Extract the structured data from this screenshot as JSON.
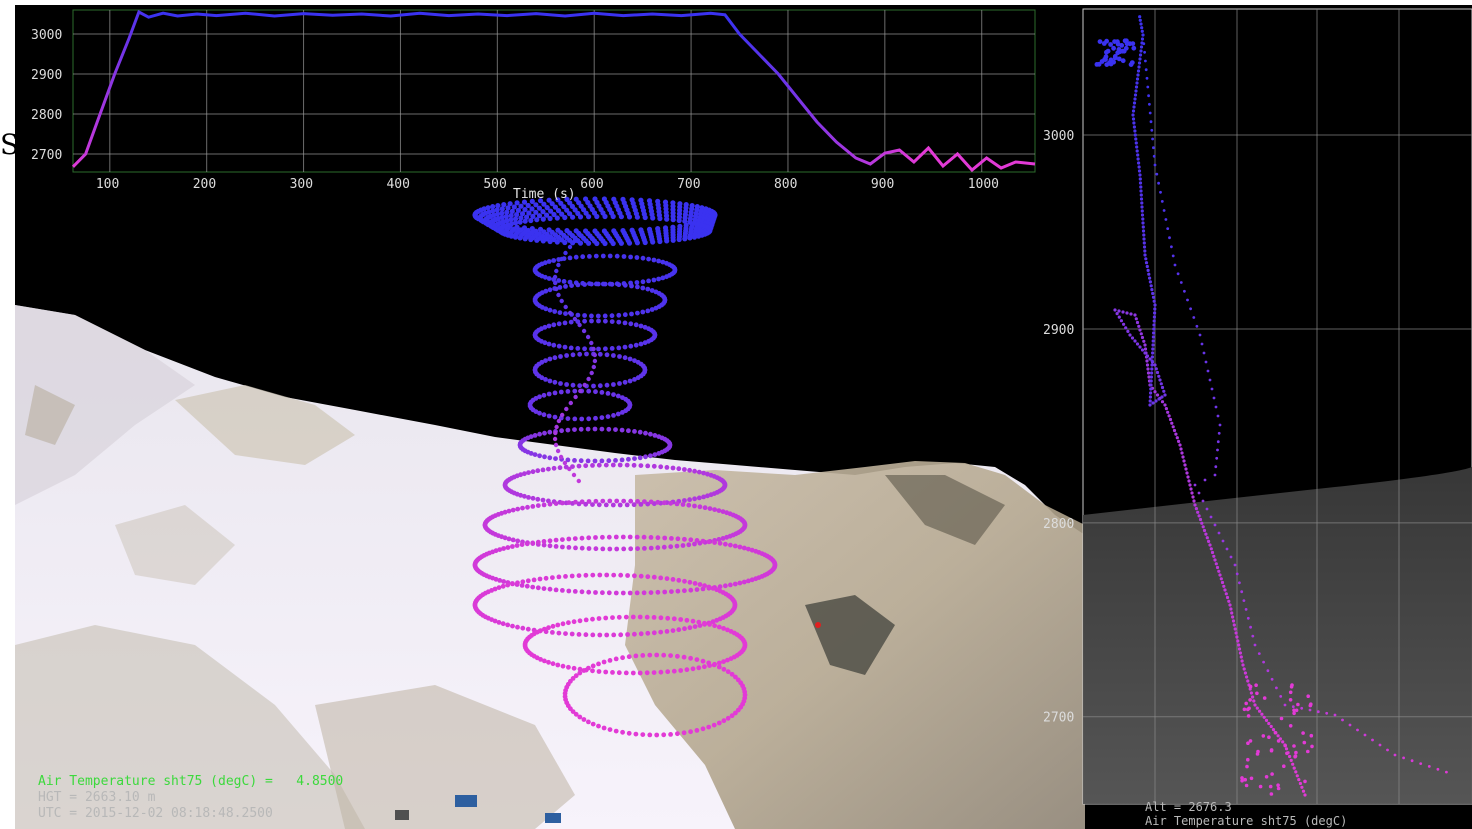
{
  "edge_label": "S",
  "top_chart": {
    "type": "line",
    "xlabel": "Time (s)",
    "ylabel": "",
    "xlim": [
      62,
      1055
    ],
    "ylim": [
      2655,
      3060
    ],
    "x_ticks": [
      100,
      200,
      300,
      400,
      500,
      600,
      700,
      800,
      900,
      1000
    ],
    "y_ticks": [
      3000,
      2900,
      2800,
      2700
    ],
    "series": [
      {
        "x": [
          62,
          75,
          90,
          105,
          120,
          130,
          140,
          155,
          170,
          190,
          210,
          240,
          270,
          300,
          330,
          360,
          390,
          420,
          450,
          480,
          510,
          540,
          570,
          600,
          630,
          660,
          690,
          720,
          735,
          750,
          770,
          790,
          810,
          830,
          850,
          870,
          885,
          900,
          915,
          930,
          945,
          960,
          975,
          990,
          1005,
          1020,
          1035,
          1055
        ],
        "y": [
          2668,
          2700,
          2800,
          2900,
          2990,
          3055,
          3042,
          3052,
          3045,
          3050,
          3046,
          3052,
          3045,
          3051,
          3047,
          3050,
          3045,
          3052,
          3046,
          3050,
          3046,
          3051,
          3045,
          3052,
          3046,
          3050,
          3046,
          3052,
          3048,
          3000,
          2950,
          2900,
          2840,
          2780,
          2730,
          2690,
          2675,
          2702,
          2710,
          2680,
          2715,
          2670,
          2700,
          2660,
          2690,
          2665,
          2680,
          2675
        ]
      }
    ]
  },
  "side_chart": {
    "type": "scatter",
    "xlabel": "",
    "ylabel": "",
    "y_ticks": [
      3000,
      2900,
      2800,
      2700
    ],
    "ylim": [
      2655,
      3065
    ]
  },
  "hud": {
    "line1_label": "Air Temperature sht75 (degC) =",
    "line1_value": "4.8500",
    "line2": "HGT = 2663.10 m",
    "line3": "UTC = 2015-12-02 08:18:48.2500",
    "side_line1": "Alt = 2676.3",
    "side_line2": "Air Temperature sht75 (degC)"
  },
  "colors": {
    "grid": "#9a9a9a",
    "frame_top": "#2d6b2d",
    "trace_start": "#e23ad6",
    "trace_end": "#3a32f0",
    "hud_text": "#3cd93c"
  }
}
